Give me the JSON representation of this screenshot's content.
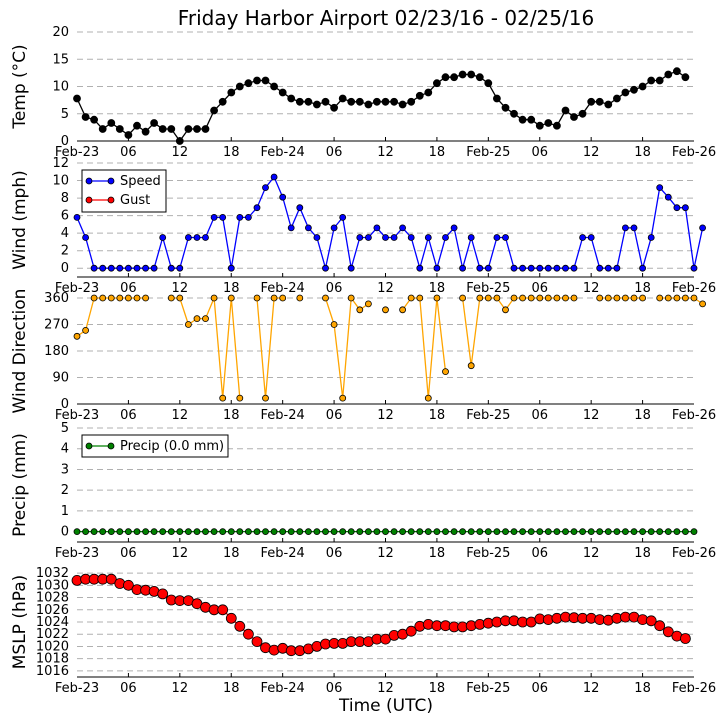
{
  "chart_data": {
    "title": "Friday Harbor Airport 02/23/16 - 02/25/16",
    "xlabel": "Time (UTC)",
    "x_tick_labels": [
      "Feb-23",
      "06",
      "12",
      "18",
      "Feb-24",
      "06",
      "12",
      "18",
      "Feb-25",
      "06",
      "12",
      "18",
      "Feb-26"
    ],
    "x_range_hours": [
      0,
      72
    ],
    "panels": [
      {
        "type": "line",
        "ylabel": "Temp ($^\\circ$C)",
        "ylabel_display": "Temp (°C)",
        "ylim": [
          0,
          20
        ],
        "yticks": [
          0,
          5,
          10,
          15,
          20
        ],
        "grid": true,
        "series": [
          {
            "color": "#000000",
            "marker_size": 3.5,
            "values": [
              7.8,
              4.4,
              3.9,
              2.2,
              3.3,
              2.2,
              1.1,
              2.8,
              1.7,
              3.3,
              2.2,
              2.2,
              0.0,
              2.2,
              2.2,
              2.2,
              5.6,
              7.2,
              8.9,
              10.0,
              10.6,
              11.1,
              11.1,
              10.0,
              8.9,
              7.8,
              7.2,
              7.2,
              6.7,
              7.2,
              6.1,
              7.8,
              7.2,
              7.2,
              6.7,
              7.2,
              7.2,
              7.2,
              6.7,
              7.2,
              8.3,
              8.9,
              10.6,
              11.7,
              11.7,
              12.2,
              12.2,
              11.7,
              10.6,
              7.8,
              6.1,
              5.0,
              3.9,
              3.9,
              2.8,
              3.3,
              2.8,
              5.6,
              4.4,
              5.0,
              7.2,
              7.2,
              6.7,
              7.8,
              8.9,
              9.4,
              10.0,
              11.1,
              11.1,
              12.2,
              12.8,
              11.7
            ]
          }
        ]
      },
      {
        "type": "line",
        "ylabel": "Wind (mph)",
        "ylim": [
          -1,
          12
        ],
        "yticks": [
          0,
          2,
          4,
          6,
          8,
          10,
          12
        ],
        "grid": true,
        "legend": {
          "placement": "top-left",
          "entries": [
            "Speed",
            "Gust"
          ]
        },
        "series": [
          {
            "name": "Speed",
            "color": "#0000ff",
            "values": [
              5.8,
              3.5,
              0,
              0,
              0,
              0,
              0,
              0,
              0,
              0,
              3.5,
              0,
              0,
              3.5,
              3.5,
              3.5,
              5.8,
              5.8,
              0,
              5.8,
              5.8,
              6.9,
              9.2,
              10.4,
              8.1,
              4.6,
              6.9,
              4.6,
              3.5,
              0,
              4.6,
              5.8,
              0,
              3.5,
              3.5,
              4.6,
              3.5,
              3.5,
              4.6,
              3.5,
              0,
              3.5,
              0,
              3.5,
              4.6,
              0,
              3.5,
              0,
              0,
              3.5,
              3.5,
              0,
              0,
              0,
              0,
              0,
              0,
              0,
              0,
              3.5,
              3.5,
              0,
              0,
              0,
              4.6,
              4.6,
              0,
              3.5,
              9.2,
              8.1,
              6.9,
              6.9,
              0,
              4.6
            ]
          },
          {
            "name": "Gust",
            "color": "#ff0000",
            "values": []
          }
        ]
      },
      {
        "type": "line",
        "ylabel": "Wind Direction",
        "ylim": [
          0,
          360
        ],
        "yticks": [
          0,
          90,
          180,
          270,
          360
        ],
        "grid": true,
        "series": [
          {
            "color": "#ffa500",
            "values": [
              230,
              250,
              360,
              360,
              360,
              360,
              360,
              360,
              360,
              null,
              null,
              360,
              360,
              270,
              290,
              290,
              360,
              20,
              360,
              20,
              null,
              360,
              20,
              360,
              360,
              null,
              360,
              null,
              null,
              360,
              270,
              20,
              360,
              320,
              340,
              null,
              320,
              null,
              320,
              360,
              360,
              20,
              360,
              110,
              null,
              360,
              130,
              360,
              360,
              360,
              320,
              360,
              360,
              360,
              360,
              360,
              360,
              360,
              360,
              null,
              null,
              360,
              360,
              360,
              360,
              360,
              360,
              null,
              360,
              360,
              360,
              360,
              360,
              340
            ]
          }
        ]
      },
      {
        "type": "line",
        "ylabel": "Precip (mm)",
        "ylim": [
          -0.5,
          5
        ],
        "yticks": [
          0,
          1,
          2,
          3,
          4,
          5
        ],
        "grid": true,
        "legend": {
          "placement": "top-left",
          "entries": [
            "Precip (0.0 mm)"
          ]
        },
        "series": [
          {
            "name": "Precip (0.0 mm)",
            "color": "#008000",
            "values": [
              0,
              0,
              0,
              0,
              0,
              0,
              0,
              0,
              0,
              0,
              0,
              0,
              0,
              0,
              0,
              0,
              0,
              0,
              0,
              0,
              0,
              0,
              0,
              0,
              0,
              0,
              0,
              0,
              0,
              0,
              0,
              0,
              0,
              0,
              0,
              0,
              0,
              0,
              0,
              0,
              0,
              0,
              0,
              0,
              0,
              0,
              0,
              0,
              0,
              0,
              0,
              0,
              0,
              0,
              0,
              0,
              0,
              0,
              0,
              0,
              0,
              0,
              0,
              0,
              0,
              0,
              0,
              0,
              0,
              0,
              0,
              0,
              0
            ]
          }
        ]
      },
      {
        "type": "line",
        "ylabel": "MSLP (hPa)",
        "ylim": [
          1015,
          1033
        ],
        "yticks": [
          1016,
          1018,
          1020,
          1022,
          1024,
          1026,
          1028,
          1030,
          1032
        ],
        "grid": true,
        "series": [
          {
            "color": "#ff0000",
            "marker_size": 5,
            "values": [
              1030.8,
              1031.0,
              1031.0,
              1031.0,
              1031.0,
              1030.3,
              1030.0,
              1029.3,
              1029.2,
              1029.0,
              1028.6,
              1027.6,
              1027.5,
              1027.5,
              1027.0,
              1026.4,
              1026.0,
              1026.0,
              1024.6,
              1023.3,
              1022.0,
              1020.8,
              1019.8,
              1019.4,
              1019.7,
              1019.3,
              1019.3,
              1019.6,
              1020.0,
              1020.4,
              1020.5,
              1020.5,
              1020.8,
              1020.8,
              1020.8,
              1021.2,
              1021.2,
              1021.8,
              1022.0,
              1022.5,
              1023.3,
              1023.6,
              1023.4,
              1023.4,
              1023.2,
              1023.2,
              1023.4,
              1023.6,
              1023.8,
              1024.0,
              1024.2,
              1024.2,
              1024.0,
              1024.0,
              1024.5,
              1024.4,
              1024.6,
              1024.8,
              1024.7,
              1024.6,
              1024.6,
              1024.4,
              1024.3,
              1024.6,
              1024.8,
              1024.8,
              1024.4,
              1024.2,
              1023.4,
              1022.4,
              1021.7,
              1021.3
            ]
          }
        ]
      }
    ]
  }
}
